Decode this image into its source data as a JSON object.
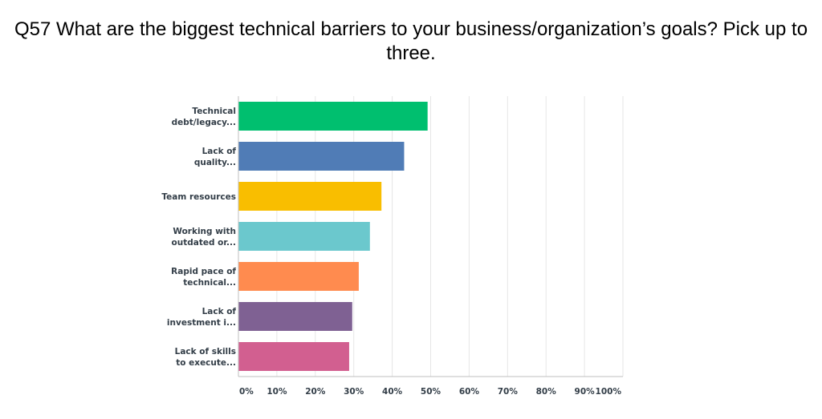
{
  "chart_data": {
    "type": "bar",
    "orientation": "horizontal",
    "title": "Q57 What are the biggest technical barriers to your business/organization’s goals? Pick up to three.",
    "categories": [
      [
        "Technical",
        "debt/legacy..."
      ],
      [
        "Lack of",
        "quality..."
      ],
      [
        "Team resources"
      ],
      [
        "Working with",
        "outdated or..."
      ],
      [
        "Rapid pace of",
        "technical..."
      ],
      [
        "Lack of",
        "investment i..."
      ],
      [
        "Lack of skills",
        "to execute..."
      ]
    ],
    "values": [
      49.2,
      43.1,
      37.2,
      34.2,
      31.3,
      29.6,
      28.8
    ],
    "colors": [
      "#00bf6f",
      "#507cb6",
      "#f9be00",
      "#6bc8cd",
      "#ff8b4f",
      "#7f6193",
      "#d25f90"
    ],
    "xlim": [
      0,
      100
    ],
    "xticks": [
      "0%",
      "10%",
      "20%",
      "30%",
      "40%",
      "50%",
      "60%",
      "70%",
      "80%",
      "90%",
      "100%"
    ],
    "grid": true,
    "xlabel": "",
    "ylabel": ""
  }
}
